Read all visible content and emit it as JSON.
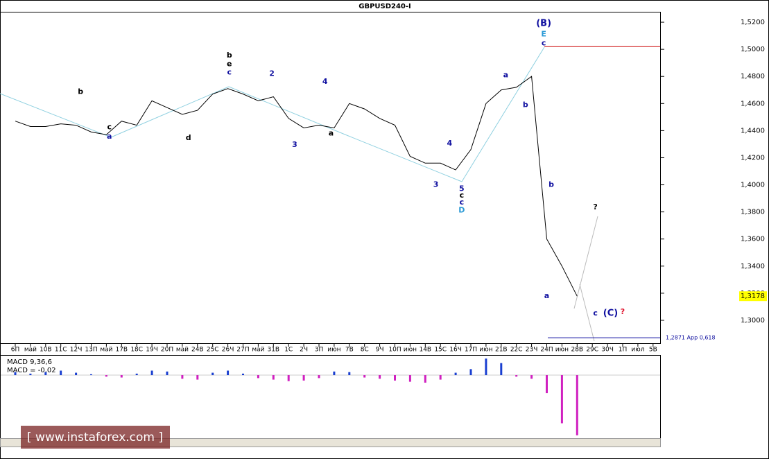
{
  "chart_data": [
    {
      "type": "line",
      "title": "GBPUSD240-I",
      "categories": [
        "6П",
        "май",
        "10В",
        "11С",
        "12Ч",
        "13П",
        "май",
        "17В",
        "18С",
        "19Ч",
        "20П",
        "май",
        "24В",
        "25С",
        "26Ч",
        "27П",
        "май",
        "31В",
        "1С",
        "2Ч",
        "3П",
        "июн",
        "7В",
        "8С",
        "9Ч",
        "10П",
        "июн",
        "14В",
        "15С",
        "16Ч",
        "17П",
        "июн",
        "21В",
        "22С",
        "23Ч",
        "24П",
        "июн",
        "28В",
        "29С",
        "30Ч",
        "1П",
        "июл",
        "5В"
      ],
      "series": [
        {
          "name": "GBPUSD240-I",
          "color": "#000000",
          "values": [
            1.447,
            1.443,
            1.443,
            1.445,
            1.444,
            1.439,
            1.437,
            1.447,
            1.444,
            1.462,
            1.457,
            1.452,
            1.455,
            1.467,
            1.471,
            1.467,
            1.462,
            1.465,
            1.449,
            1.442,
            1.444,
            1.442,
            1.46,
            1.456,
            1.449,
            1.444,
            1.421,
            1.416,
            1.416,
            1.411,
            1.426,
            1.46,
            1.47,
            1.472,
            1.48,
            1.36,
            1.34,
            1.3178,
            null,
            null,
            null,
            null,
            null
          ]
        }
      ],
      "ylim": [
        1.2831,
        1.5277
      ],
      "yticks": [
        {
          "value": 1.3,
          "label": "1,3000"
        },
        {
          "value": 1.32,
          "label": "1,3200"
        },
        {
          "value": 1.34,
          "label": "1,3400"
        },
        {
          "value": 1.36,
          "label": "1,3600"
        },
        {
          "value": 1.38,
          "label": "1,3800"
        },
        {
          "value": 1.4,
          "label": "1,4000"
        },
        {
          "value": 1.42,
          "label": "1,4200"
        },
        {
          "value": 1.44,
          "label": "1,4400"
        },
        {
          "value": 1.46,
          "label": "1,4600"
        },
        {
          "value": 1.48,
          "label": "1,4800"
        },
        {
          "value": 1.5,
          "label": "1,5000"
        },
        {
          "value": 1.52,
          "label": "1,5200"
        }
      ],
      "current_price": {
        "value": 1.3178,
        "label": "1,3178"
      },
      "levels": [
        {
          "value": 1.502,
          "color": "#cc0000"
        },
        {
          "value": 1.2871,
          "label": "1,2871 App 0,618",
          "color": "#1010a0"
        }
      ],
      "annotations": [
        {
          "text": "(B)",
          "x": 34.8,
          "y": 1.519,
          "color": "#1010a0"
        },
        {
          "text": "E",
          "x": 34.8,
          "y": 1.511,
          "color": "#2a9ad6"
        },
        {
          "text": "c",
          "x": 34.8,
          "y": 1.5045,
          "color": "#1010a0"
        },
        {
          "text": "a",
          "x": 32.3,
          "y": 1.481,
          "color": "#1010a0"
        },
        {
          "text": "b",
          "x": 33.6,
          "y": 1.459,
          "color": "#1010a0"
        },
        {
          "text": "5",
          "x": 29.4,
          "y": 1.397,
          "color": "#1010a0"
        },
        {
          "text": "c",
          "x": 29.4,
          "y": 1.392,
          "color": "#000000"
        },
        {
          "text": "c",
          "x": 29.4,
          "y": 1.387,
          "color": "#1010a0"
        },
        {
          "text": "D",
          "x": 29.4,
          "y": 1.381,
          "color": "#2a9ad6"
        },
        {
          "text": "b",
          "x": 35.3,
          "y": 1.4,
          "color": "#1010a0"
        },
        {
          "text": "a",
          "x": 35,
          "y": 1.318,
          "color": "#1010a0"
        },
        {
          "text": "c",
          "x": 38.2,
          "y": 1.305,
          "color": "#1010a0"
        },
        {
          "text": "(C)",
          "x": 39.2,
          "y": 1.305,
          "color": "#1010a0"
        },
        {
          "text": "?",
          "x": 40,
          "y": 1.306,
          "color": "#e0102a"
        },
        {
          "text": "?",
          "x": 38.2,
          "y": 1.3835,
          "color": "#000000"
        },
        {
          "text": "3",
          "x": 27.7,
          "y": 1.4,
          "color": "#1010a0"
        },
        {
          "text": "4",
          "x": 28.6,
          "y": 1.4305,
          "color": "#1010a0"
        },
        {
          "text": "3",
          "x": 18.4,
          "y": 1.4295,
          "color": "#1010a0"
        },
        {
          "text": "4",
          "x": 20.4,
          "y": 1.476,
          "color": "#1010a0"
        },
        {
          "text": "2",
          "x": 16.9,
          "y": 1.482,
          "color": "#1010a0"
        },
        {
          "text": "b",
          "x": 14.1,
          "y": 1.4955,
          "color": "#000000"
        },
        {
          "text": "e",
          "x": 14.1,
          "y": 1.489,
          "color": "#000000"
        },
        {
          "text": "c",
          "x": 14.1,
          "y": 1.483,
          "color": "#1010a0"
        },
        {
          "text": "a",
          "x": 6.2,
          "y": 1.4355,
          "color": "#1010a0"
        },
        {
          "text": "c",
          "x": 6.2,
          "y": 1.4425,
          "color": "#000000"
        },
        {
          "text": "b",
          "x": 4.3,
          "y": 1.4685,
          "color": "#000000"
        },
        {
          "text": "d",
          "x": 11.4,
          "y": 1.4345,
          "color": "#000000"
        },
        {
          "text": "a",
          "x": 20.8,
          "y": 1.438,
          "color": "#000000"
        }
      ]
    },
    {
      "type": "histogram_macd",
      "title": "MACD 9,36,6",
      "subtitle": "MACD = -0,02",
      "series": [
        {
          "name": "MACD",
          "color": "#1a3fd0",
          "negative_color": "#d020c0",
          "values": [
            0.001,
            0.0005,
            0.001,
            0.0015,
            0.0008,
            0.0003,
            -0.0005,
            -0.0008,
            0.0005,
            0.0015,
            0.0012,
            -0.0012,
            -0.0015,
            0.0008,
            0.0015,
            0.0005,
            -0.001,
            -0.0015,
            -0.002,
            -0.0018,
            -0.001,
            0.0012,
            0.001,
            -0.0008,
            -0.0012,
            -0.0018,
            -0.0022,
            -0.0025,
            -0.0015,
            0.0008,
            0.002,
            0.0055,
            0.004,
            -0.0005,
            -0.0012,
            -0.006,
            -0.016,
            -0.02,
            null,
            null,
            null,
            null,
            null
          ]
        }
      ],
      "ylim": [
        -0.0205,
        0.006
      ]
    }
  ],
  "watermark": "[ www.instaforex.com ]"
}
